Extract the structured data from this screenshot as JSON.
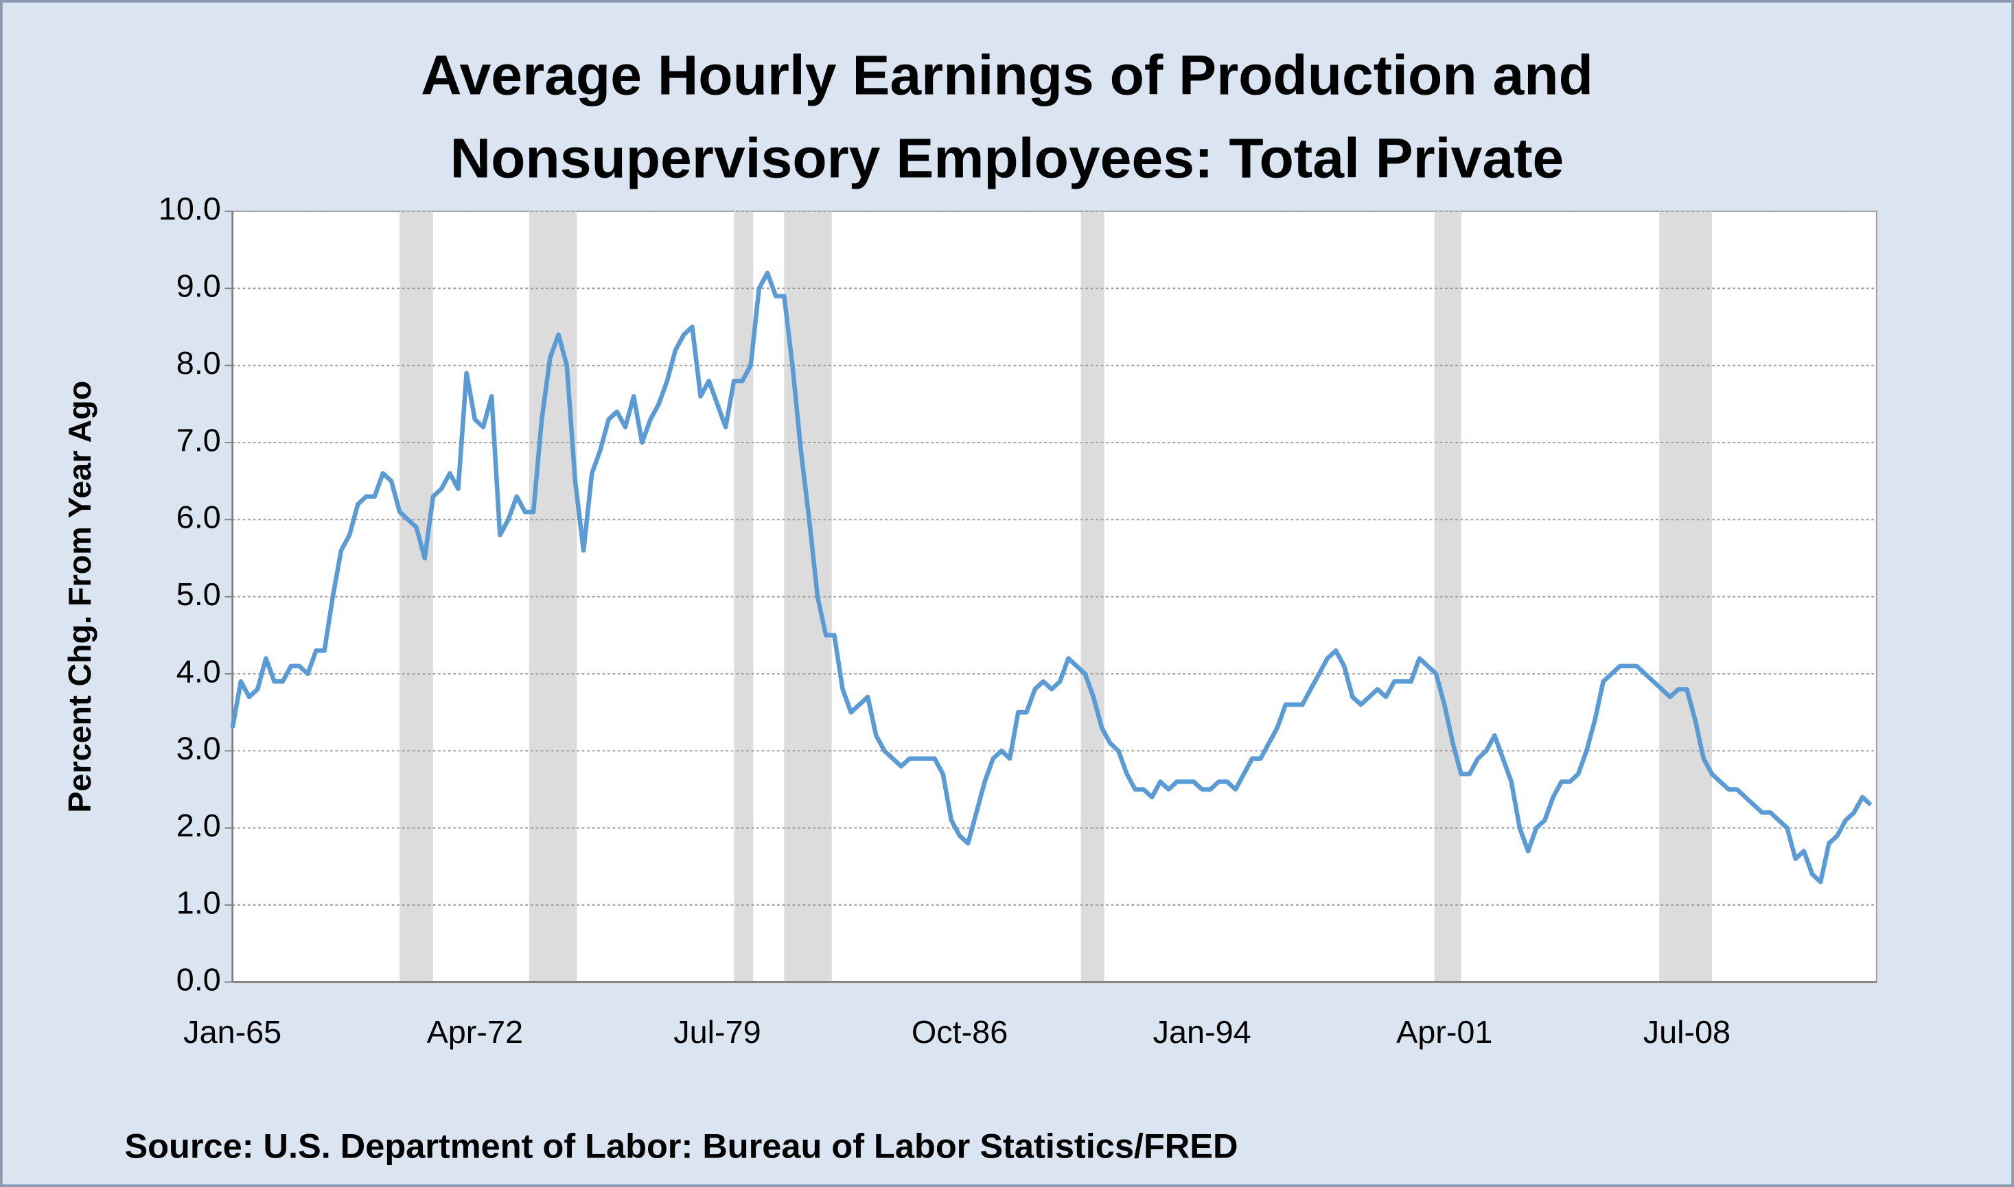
{
  "chart_data": {
    "type": "line",
    "title": [
      "Average Hourly Earnings of Production and",
      "Nonsupervisory Employees: Total Private"
    ],
    "ylabel": "Percent Chg. From Year Ago",
    "source": "Source: U.S. Department of Labor: Bureau of Labor Statistics/FRED",
    "categories": [
      "Jan-65",
      null,
      null,
      null,
      null,
      null,
      null,
      null,
      null,
      null,
      null,
      null,
      null,
      null,
      null,
      null,
      null,
      null,
      null,
      null,
      null,
      null,
      null,
      null,
      null,
      null,
      null,
      null,
      null,
      "Apr-72",
      null,
      null,
      null,
      null,
      null,
      null,
      null,
      null,
      null,
      null,
      null,
      null,
      null,
      null,
      null,
      null,
      null,
      null,
      null,
      null,
      null,
      null,
      null,
      null,
      null,
      null,
      null,
      null,
      "Jul-79",
      null,
      null,
      null,
      null,
      null,
      null,
      null,
      null,
      null,
      null,
      null,
      null,
      null,
      null,
      null,
      null,
      null,
      null,
      null,
      null,
      null,
      null,
      null,
      null,
      null,
      null,
      null,
      null,
      "Oct-86",
      null,
      null,
      null,
      null,
      null,
      null,
      null,
      null,
      null,
      null,
      null,
      null,
      null,
      null,
      null,
      null,
      null,
      null,
      null,
      null,
      null,
      null,
      null,
      null,
      null,
      null,
      null,
      null,
      "Jan-94",
      null,
      null,
      null,
      null,
      null,
      null,
      null,
      null,
      null,
      null,
      null,
      null,
      null,
      null,
      null,
      null,
      null,
      null,
      null,
      null,
      null,
      null,
      null,
      null,
      null,
      null,
      null,
      null,
      "Apr-01",
      null,
      null,
      null,
      null,
      null,
      null,
      null,
      null,
      null,
      null,
      null,
      null,
      null,
      null,
      null,
      null,
      null,
      null,
      null,
      null,
      null,
      null,
      null,
      null,
      null,
      null,
      null,
      null,
      "Jul-08",
      null,
      null,
      null,
      null,
      null,
      null,
      null,
      null,
      null,
      null,
      null,
      null,
      null,
      null,
      null,
      null,
      null,
      null,
      null,
      null,
      null,
      null
    ],
    "series": [
      {
        "color": "#5b9bd5",
        "values": [
          3.3,
          3.9,
          3.7,
          3.8,
          4.2,
          3.9,
          3.9,
          4.1,
          4.1,
          4.0,
          4.3,
          4.3,
          5.0,
          5.6,
          5.8,
          6.2,
          6.3,
          6.3,
          6.6,
          6.5,
          6.1,
          6.0,
          5.9,
          5.5,
          6.3,
          6.4,
          6.6,
          6.4,
          7.9,
          7.3,
          7.2,
          7.6,
          5.8,
          6.0,
          6.3,
          6.1,
          6.1,
          7.3,
          8.1,
          8.4,
          8.0,
          6.5,
          5.6,
          6.6,
          6.9,
          7.3,
          7.4,
          7.2,
          7.6,
          7.0,
          7.3,
          7.5,
          7.8,
          8.2,
          8.4,
          8.5,
          7.6,
          7.8,
          7.5,
          7.2,
          7.8,
          7.8,
          8.0,
          9.0,
          9.2,
          8.9,
          8.9,
          8.0,
          6.9,
          6.0,
          5.0,
          4.5,
          4.5,
          3.8,
          3.5,
          3.6,
          3.7,
          3.2,
          3.0,
          2.9,
          2.8,
          2.9,
          2.9,
          2.9,
          2.9,
          2.7,
          2.1,
          1.9,
          1.8,
          2.2,
          2.6,
          2.9,
          3.0,
          2.9,
          3.5,
          3.5,
          3.8,
          3.9,
          3.8,
          3.9,
          4.2,
          4.1,
          4.0,
          3.7,
          3.3,
          3.1,
          3.0,
          2.7,
          2.5,
          2.5,
          2.4,
          2.6,
          2.5,
          2.6,
          2.6,
          2.6,
          2.5,
          2.5,
          2.6,
          2.6,
          2.5,
          2.7,
          2.9,
          2.9,
          3.1,
          3.3,
          3.6,
          3.6,
          3.6,
          3.8,
          4.0,
          4.2,
          4.3,
          4.1,
          3.7,
          3.6,
          3.7,
          3.8,
          3.7,
          3.9,
          3.9,
          3.9,
          4.2,
          4.1,
          4.0,
          3.6,
          3.1,
          2.7,
          2.7,
          2.9,
          3.0,
          3.2,
          2.9,
          2.6,
          2.0,
          1.7,
          2.0,
          2.1,
          2.4,
          2.6,
          2.6,
          2.7,
          3.0,
          3.4,
          3.9,
          4.0,
          4.1,
          4.1,
          4.1,
          4.0,
          3.9,
          3.8,
          3.7,
          3.8,
          3.8,
          3.4,
          2.9,
          2.7,
          2.6,
          2.5,
          2.5,
          2.4,
          2.3,
          2.2,
          2.2,
          2.1,
          2.0,
          1.6,
          1.7,
          1.4,
          1.3,
          1.8,
          1.9,
          2.1,
          2.2,
          2.4,
          2.3
        ]
      }
    ],
    "shaded_ranges": [
      {
        "start": 20,
        "end": 24
      },
      {
        "start": 35.5,
        "end": 41.2
      },
      {
        "start": 60,
        "end": 62.3
      },
      {
        "start": 66,
        "end": 71.7
      },
      {
        "start": 101.5,
        "end": 104.3
      },
      {
        "start": 143.8,
        "end": 147
      },
      {
        "start": 170.7,
        "end": 177
      }
    ],
    "shade_color": "#dcdcdc",
    "ylim": [
      0,
      10
    ],
    "yticks": [
      {
        "value": 0,
        "label": "0.0"
      },
      {
        "value": 1,
        "label": "1.0"
      },
      {
        "value": 2,
        "label": "2.0"
      },
      {
        "value": 3,
        "label": "3.0"
      },
      {
        "value": 4,
        "label": "4.0"
      },
      {
        "value": 5,
        "label": "5.0"
      },
      {
        "value": 6,
        "label": "6.0"
      },
      {
        "value": 7,
        "label": "7.0"
      },
      {
        "value": 8,
        "label": "8.0"
      },
      {
        "value": 9,
        "label": "9.0"
      },
      {
        "value": 10,
        "label": "10.0"
      }
    ],
    "grid": true
  }
}
